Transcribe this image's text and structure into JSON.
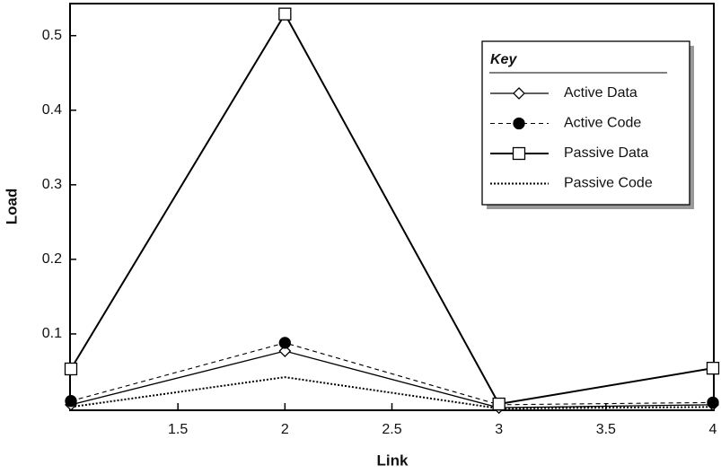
{
  "chart_data": {
    "type": "line",
    "x_label": "Link",
    "y_label": "Load",
    "x": [
      1,
      2,
      3,
      4
    ],
    "series": [
      {
        "name": "Active Data",
        "color": "#000000",
        "line_style": "solid",
        "marker": "diamond",
        "values": [
          0.005,
          0.077,
          0.001,
          0.005
        ]
      },
      {
        "name": "Active Code",
        "color": "#000000",
        "line_style": "dashed",
        "marker": "circle",
        "values": [
          0.01,
          0.088,
          0.005,
          0.008
        ]
      },
      {
        "name": "Passive Data",
        "color": "#000000",
        "line_style": "solid-thick",
        "marker": "square",
        "values": [
          0.053,
          0.529,
          0.006,
          0.054
        ]
      },
      {
        "name": "Passive Code",
        "color": "#000000",
        "line_style": "dotted",
        "marker": "none",
        "values": [
          0.002,
          0.042,
          0,
          0.002
        ]
      }
    ],
    "xlim": [
      1,
      4
    ],
    "xticks": [
      1.5,
      2,
      2.5,
      3,
      3.5,
      4
    ],
    "ylim": [
      0,
      0.543
    ],
    "yticks": [
      0.1,
      0.2,
      0.3,
      0.4,
      0.5
    ],
    "legend_title": "Key",
    "legend_position": "upper right",
    "grid": false
  }
}
